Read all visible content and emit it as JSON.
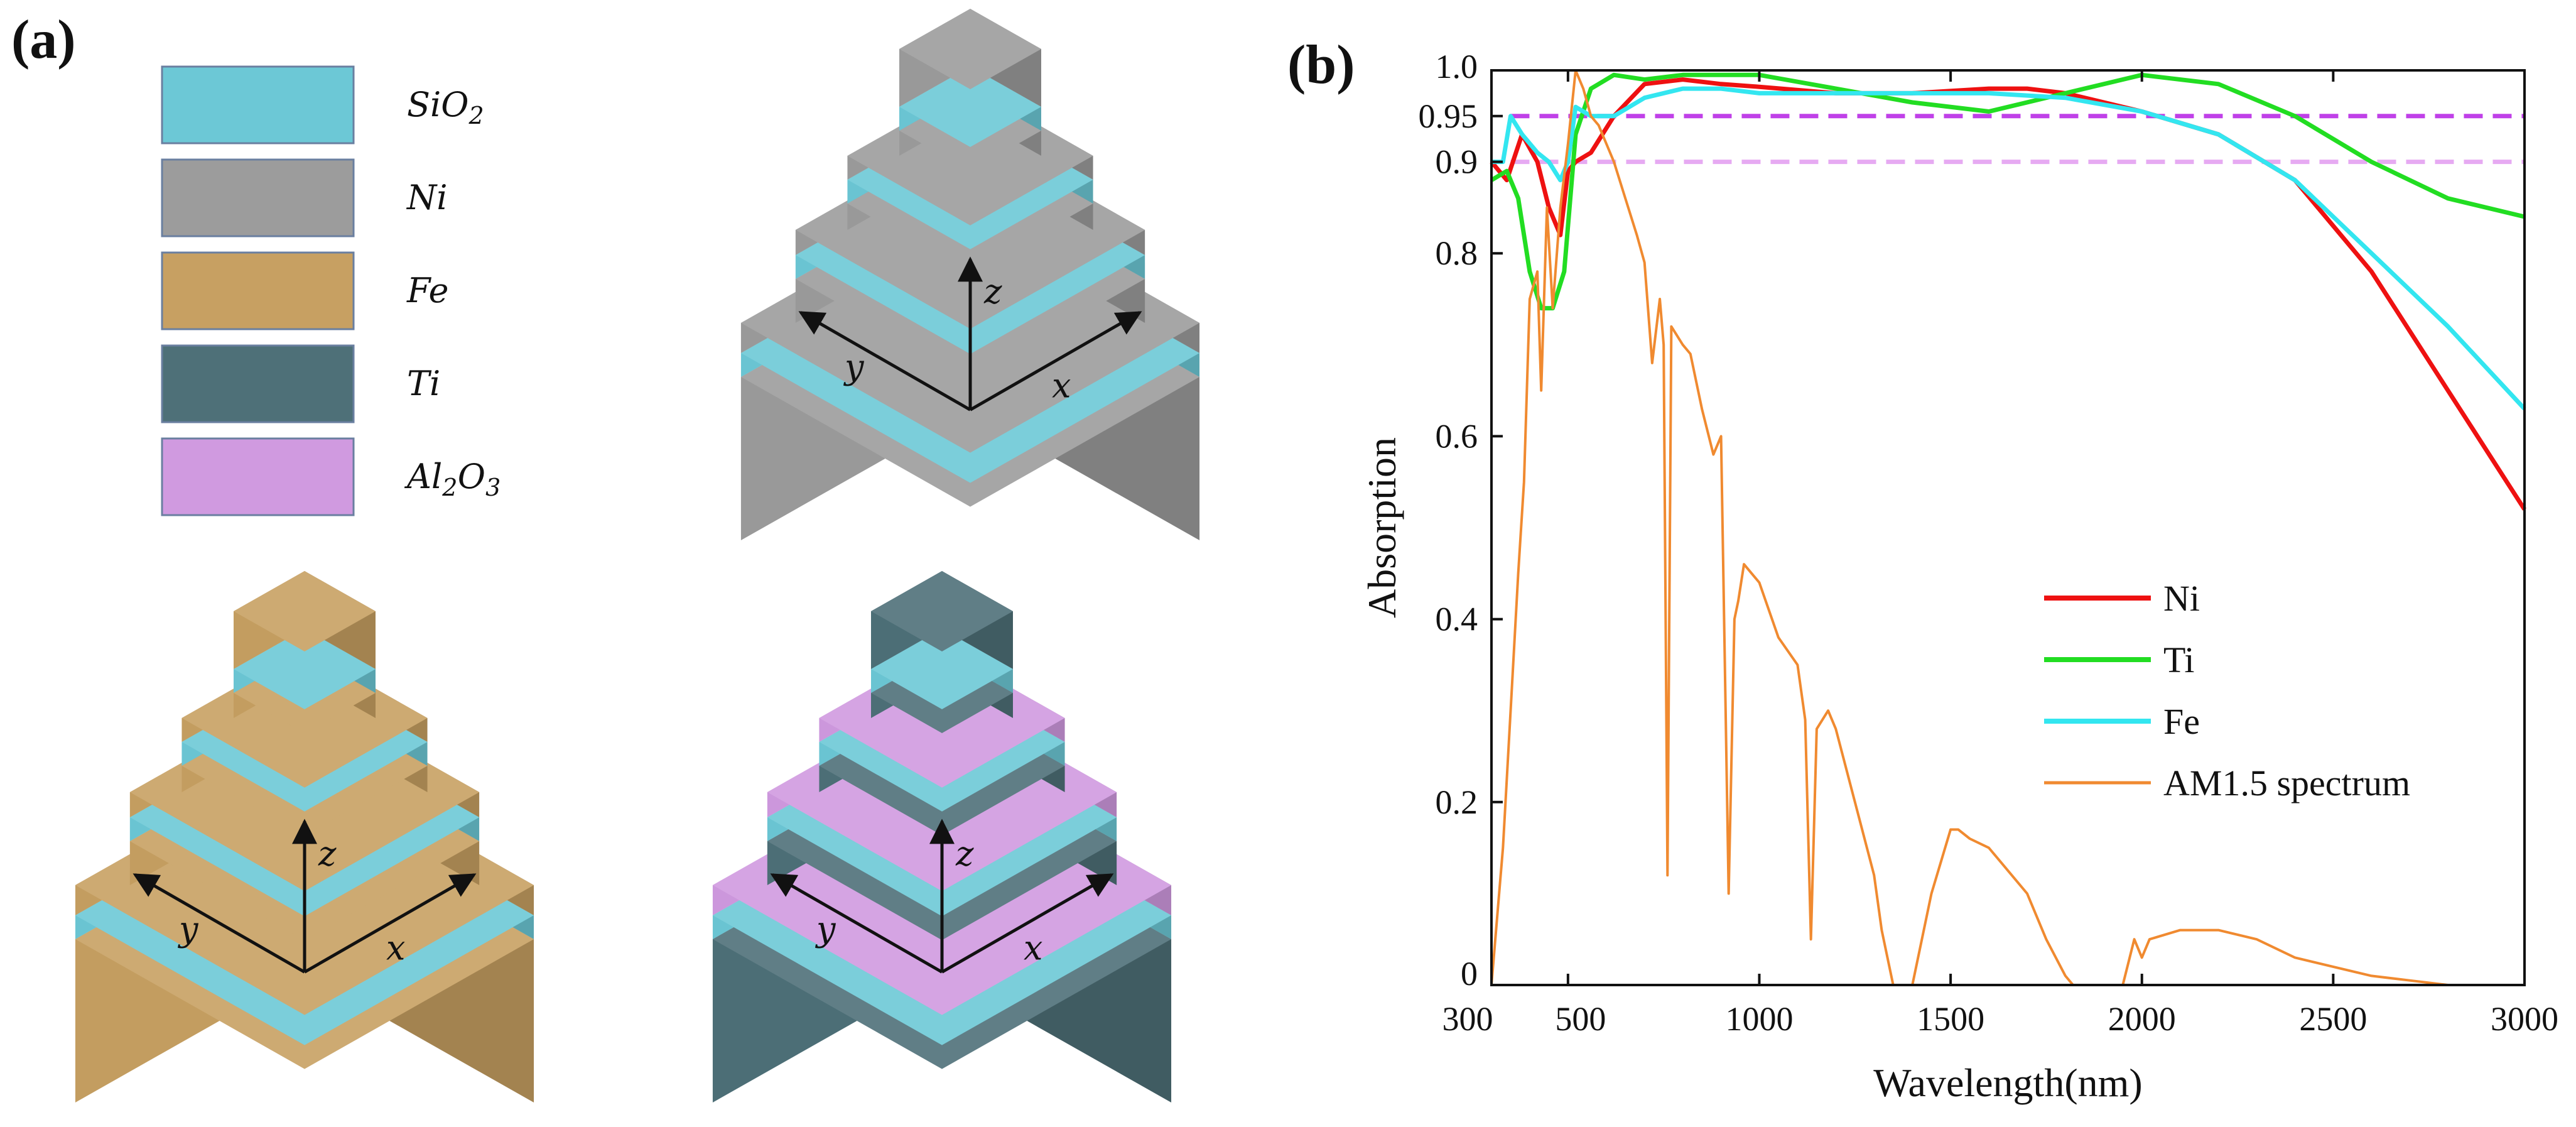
{
  "panel_a": {
    "label": "(a)",
    "materials": [
      {
        "key": "sio2",
        "sym": "SiO",
        "sub": "2",
        "sym2": "",
        "sub2": "",
        "color": "#6cc8d6"
      },
      {
        "key": "ni",
        "sym": "Ni",
        "sub": "",
        "sym2": "",
        "sub2": "",
        "color": "#9c9c9c"
      },
      {
        "key": "fe",
        "sym": "Fe",
        "sub": "",
        "sym2": "",
        "sub2": "",
        "color": "#c7a062"
      },
      {
        "key": "ti",
        "sym": "Ti",
        "sub": "",
        "sym2": "",
        "sub2": "",
        "color": "#4e7078"
      },
      {
        "key": "al2o3",
        "sym": "Al",
        "sub": "2",
        "sym2": "O",
        "sub2": "3",
        "color": "#d09ae0"
      }
    ],
    "structures": [
      {
        "name": "ni-structure",
        "metal": "#9c9c9c",
        "dielectric": "#6cc8d6",
        "top_dielectric": "#6cc8d6",
        "axis_x": "x",
        "axis_y": "y",
        "axis_z": "z"
      },
      {
        "name": "fe-structure",
        "metal": "#c7a062",
        "dielectric": "#6cc8d6",
        "top_dielectric": "#6cc8d6",
        "axis_x": "x",
        "axis_y": "y",
        "axis_z": "z"
      },
      {
        "name": "ti-structure",
        "metal": "#4e7078",
        "dielectric": "#6cc8d6",
        "top_dielectric": "#d09ae0",
        "axis_x": "x",
        "axis_y": "y",
        "axis_z": "z"
      }
    ]
  },
  "chart_data": {
    "type": "line",
    "panel_label": "(b)",
    "xlabel": "Wavelength(nm)",
    "ylabel": "Absorption",
    "xlim": [
      300,
      3000
    ],
    "ylim": [
      0,
      1.0
    ],
    "xticks": [
      {
        "value": 300,
        "label": "300"
      },
      {
        "value": 500,
        "label": "500"
      },
      {
        "value": 1000,
        "label": "1000"
      },
      {
        "value": 1500,
        "label": "1500"
      },
      {
        "value": 2000,
        "label": "2000"
      },
      {
        "value": 2500,
        "label": "2500"
      },
      {
        "value": 3000,
        "label": "3000"
      }
    ],
    "yticks": [
      {
        "value": 0,
        "label": "0"
      },
      {
        "value": 0.2,
        "label": "0.2"
      },
      {
        "value": 0.4,
        "label": "0.4"
      },
      {
        "value": 0.6,
        "label": "0.6"
      },
      {
        "value": 0.8,
        "label": "0.8"
      },
      {
        "value": 0.9,
        "label": "0.9"
      },
      {
        "value": 0.95,
        "label": "0.95"
      },
      {
        "value": 1.0,
        "label": "1.0"
      }
    ],
    "reference_lines": [
      {
        "y": 0.95,
        "color": "#c040e8"
      },
      {
        "y": 0.9,
        "color": "#e6aaf2"
      }
    ],
    "legend_position": "center-right",
    "series": [
      {
        "name": "Ni",
        "color": "#ee1111",
        "x": [
          300,
          340,
          380,
          420,
          450,
          480,
          500,
          520,
          560,
          620,
          700,
          800,
          900,
          1000,
          1200,
          1400,
          1600,
          1700,
          1800,
          2000,
          2200,
          2400,
          2600,
          2800,
          3000
        ],
        "y": [
          0.9,
          0.88,
          0.93,
          0.9,
          0.85,
          0.82,
          0.89,
          0.9,
          0.91,
          0.95,
          0.985,
          0.99,
          0.985,
          0.982,
          0.975,
          0.975,
          0.98,
          0.98,
          0.975,
          0.955,
          0.93,
          0.88,
          0.78,
          0.65,
          0.52
        ]
      },
      {
        "name": "Ti",
        "color": "#22dd22",
        "x": [
          300,
          340,
          370,
          400,
          430,
          460,
          490,
          520,
          560,
          620,
          700,
          800,
          1000,
          1200,
          1400,
          1600,
          1800,
          2000,
          2200,
          2400,
          2600,
          2800,
          3000
        ],
        "y": [
          0.88,
          0.89,
          0.86,
          0.78,
          0.74,
          0.74,
          0.78,
          0.93,
          0.98,
          0.995,
          0.99,
          0.995,
          0.995,
          0.98,
          0.965,
          0.955,
          0.975,
          0.995,
          0.985,
          0.95,
          0.9,
          0.86,
          0.84
        ]
      },
      {
        "name": "Fe",
        "color": "#33e6f0",
        "x": [
          300,
          330,
          350,
          380,
          420,
          450,
          480,
          500,
          520,
          560,
          620,
          700,
          800,
          900,
          1000,
          1200,
          1400,
          1600,
          1800,
          2000,
          2200,
          2400,
          2600,
          2800,
          3000
        ],
        "y": [
          0.9,
          0.9,
          0.95,
          0.93,
          0.91,
          0.9,
          0.88,
          0.9,
          0.96,
          0.95,
          0.95,
          0.97,
          0.98,
          0.98,
          0.975,
          0.975,
          0.975,
          0.975,
          0.97,
          0.955,
          0.93,
          0.88,
          0.8,
          0.72,
          0.63
        ]
      },
      {
        "name": "AM1.5 spectrum",
        "color": "#f08a30",
        "x": [
          300,
          310,
          330,
          350,
          370,
          385,
          400,
          420,
          430,
          445,
          460,
          480,
          500,
          520,
          540,
          560,
          580,
          600,
          620,
          650,
          680,
          700,
          720,
          740,
          750,
          760,
          770,
          800,
          820,
          850,
          880,
          900,
          920,
          935,
          945,
          960,
          1000,
          1050,
          1100,
          1120,
          1135,
          1150,
          1180,
          1200,
          1250,
          1300,
          1320,
          1350,
          1400,
          1450,
          1500,
          1520,
          1550,
          1600,
          1700,
          1750,
          1800,
          1820,
          1850,
          1950,
          1980,
          2000,
          2020,
          2100,
          2150,
          2200,
          2300,
          2400,
          2500,
          2600,
          2700,
          2800,
          2900,
          3000
        ],
        "y": [
          0.0,
          0.05,
          0.15,
          0.3,
          0.45,
          0.55,
          0.75,
          0.78,
          0.65,
          0.85,
          0.74,
          0.85,
          0.92,
          1.0,
          0.98,
          0.95,
          0.94,
          0.92,
          0.9,
          0.86,
          0.82,
          0.79,
          0.68,
          0.75,
          0.7,
          0.12,
          0.72,
          0.7,
          0.69,
          0.63,
          0.58,
          0.6,
          0.1,
          0.4,
          0.42,
          0.46,
          0.44,
          0.38,
          0.35,
          0.29,
          0.05,
          0.28,
          0.3,
          0.28,
          0.2,
          0.12,
          0.06,
          0.0,
          0.0,
          0.1,
          0.17,
          0.17,
          0.16,
          0.15,
          0.1,
          0.05,
          0.01,
          0.0,
          0.0,
          0.0,
          0.05,
          0.03,
          0.05,
          0.06,
          0.06,
          0.06,
          0.05,
          0.03,
          0.02,
          0.01,
          0.005,
          0.0,
          0.0,
          0.0
        ]
      }
    ]
  }
}
